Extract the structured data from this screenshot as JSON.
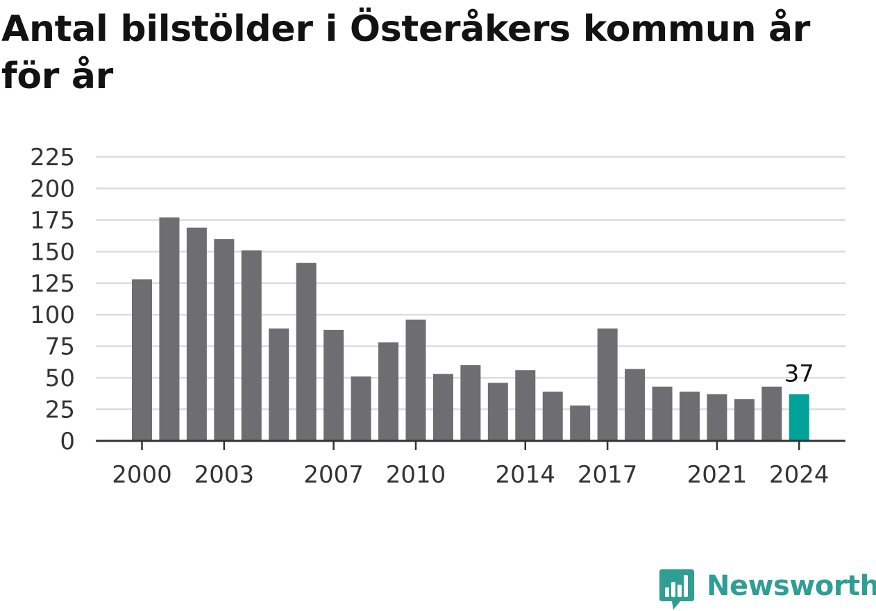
{
  "title": "Antal bilstölder i Österåkers kommun år för år",
  "brand": {
    "name": "Newsworthy",
    "color": "#2f9e95",
    "icon": "bar-chart-speech-bubble-icon"
  },
  "colors": {
    "bar": "#6e6d72",
    "highlight": "#00a29a",
    "grid": "#dcdcdc",
    "axis": "#333333",
    "text": "#333333",
    "label": "#111111"
  },
  "chart_data": {
    "type": "bar",
    "title": "Antal bilstölder i Österåkers kommun år för år",
    "xlabel": "",
    "ylabel": "",
    "categories": [
      2000,
      2001,
      2002,
      2003,
      2004,
      2005,
      2006,
      2007,
      2008,
      2009,
      2010,
      2011,
      2012,
      2013,
      2014,
      2015,
      2016,
      2017,
      2018,
      2019,
      2020,
      2021,
      2022,
      2023,
      2024
    ],
    "values": [
      128,
      177,
      169,
      160,
      151,
      89,
      141,
      88,
      51,
      78,
      96,
      53,
      60,
      46,
      56,
      39,
      28,
      89,
      57,
      43,
      39,
      37,
      33,
      43,
      37
    ],
    "ylim": [
      0,
      225
    ],
    "yticks": [
      0,
      25,
      50,
      75,
      100,
      125,
      150,
      175,
      200,
      225
    ],
    "xtick_labels": [
      2000,
      2003,
      2007,
      2010,
      2014,
      2017,
      2021,
      2024
    ],
    "grid": true,
    "highlight_index": 24,
    "annotations": [
      {
        "category": 2024,
        "text": "37"
      }
    ]
  }
}
